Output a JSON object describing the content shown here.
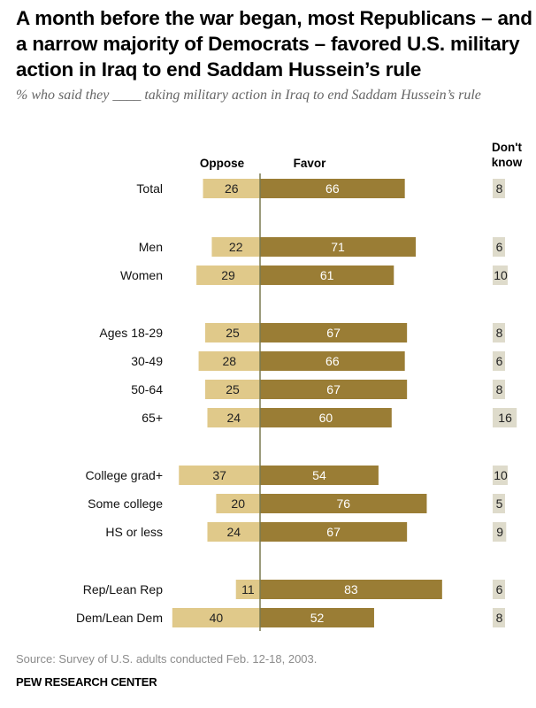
{
  "title": "A month before the war began, most Republicans – and a narrow majority of Democrats – favored U.S. military action in Iraq to end Saddam Hussein’s rule",
  "subtitle": "% who said they ____ taking military action in Iraq to end Saddam Hussein’s rule",
  "source": "Source: Survey of U.S. adults conducted Feb. 12-18, 2003.",
  "brand": "PEW RESEARCH CENTER",
  "colors": {
    "oppose": "#e0c98a",
    "favor": "#9a7d35",
    "dont_know": "#dedbcb",
    "axis": "#7a7a50",
    "favor_text": "#ffffff",
    "other_text": "#222222"
  },
  "chart_data": {
    "type": "bar",
    "orientation": "horizontal-diverging",
    "title": "A month before the war began, most Republicans – and a narrow majority of Democrats – favored U.S. military action in Iraq to end Saddam Hussein’s rule",
    "subtitle": "% who said they ____ taking military action in Iraq to end Saddam Hussein’s rule",
    "legend": [
      "Oppose",
      "Favor",
      "Don't know"
    ],
    "column_headers": {
      "oppose": "Oppose",
      "favor": "Favor",
      "dont_know": "Don't know"
    },
    "categories": [
      "Total",
      "Men",
      "Women",
      "Ages 18-29",
      "30-49",
      "50-64",
      "65+",
      "College grad+",
      "Some college",
      "HS or less",
      "Rep/Lean Rep",
      "Dem/Lean Dem"
    ],
    "groups": [
      [
        "Total"
      ],
      [
        "Men",
        "Women"
      ],
      [
        "Ages 18-29",
        "30-49",
        "50-64",
        "65+"
      ],
      [
        "College grad+",
        "Some college",
        "HS or less"
      ],
      [
        "Rep/Lean Rep",
        "Dem/Lean Dem"
      ]
    ],
    "series": [
      {
        "name": "Oppose",
        "values": [
          26,
          22,
          29,
          25,
          28,
          25,
          24,
          37,
          20,
          24,
          11,
          40
        ]
      },
      {
        "name": "Favor",
        "values": [
          66,
          71,
          61,
          67,
          66,
          67,
          60,
          54,
          76,
          67,
          83,
          52
        ]
      },
      {
        "name": "Don't know",
        "values": [
          8,
          6,
          10,
          8,
          6,
          8,
          16,
          10,
          5,
          9,
          6,
          8
        ]
      }
    ],
    "xlabel": "",
    "ylabel": "",
    "grid": false
  }
}
